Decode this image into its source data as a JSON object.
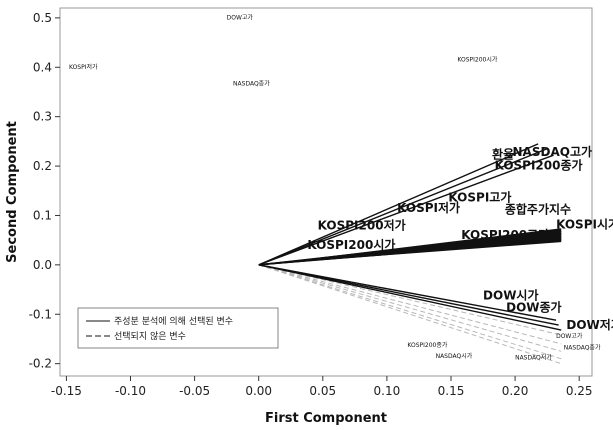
{
  "chart_data": {
    "type": "biplot-loading",
    "xlabel": "First Component",
    "ylabel": "Second Component",
    "xlim": [
      -0.155,
      0.26
    ],
    "ylim": [
      -0.225,
      0.52
    ],
    "x_ticks": [
      -0.15,
      -0.1,
      -0.05,
      0.0,
      0.05,
      0.1,
      0.15,
      0.2,
      0.25
    ],
    "x_tick_labels": [
      "-0.15",
      "-0.10",
      "-0.05",
      "0.00",
      "0.05",
      "0.10",
      "0.15",
      "0.20",
      "0.25"
    ],
    "y_ticks": [
      -0.2,
      -0.1,
      0.0,
      0.1,
      0.2,
      0.3,
      0.4,
      0.5
    ],
    "y_tick_labels": [
      "-0.2",
      "-0.1",
      "0.0",
      "0.1",
      "0.2",
      "0.3",
      "0.4",
      "0.5"
    ],
    "origin": [
      0.0,
      0.0
    ],
    "selected_vectors": [
      {
        "label": "환율",
        "x": 0.218,
        "y": 0.245
      },
      {
        "label": "NASDAQ고가",
        "x": 0.225,
        "y": 0.235
      },
      {
        "label": "KOSPI200종가",
        "x": 0.23,
        "y": 0.222
      },
      {
        "label": "KOSPI고가",
        "x": 0.236,
        "y": 0.068
      },
      {
        "label": "KOSPI저가",
        "x": 0.236,
        "y": 0.064
      },
      {
        "label": "종합주가지수",
        "x": 0.236,
        "y": 0.062
      },
      {
        "label": "KOSPI시가",
        "x": 0.236,
        "y": 0.058
      },
      {
        "label": "KOSPI200저가",
        "x": 0.236,
        "y": 0.055
      },
      {
        "label": "KOSPI200시가",
        "x": 0.236,
        "y": 0.052
      },
      {
        "label": "KOSPI200고가",
        "x": 0.236,
        "y": 0.05
      },
      {
        "label": "DOW시가",
        "x": 0.232,
        "y": -0.112
      },
      {
        "label": "DOW종가",
        "x": 0.234,
        "y": -0.122
      },
      {
        "label": "DOW저가",
        "x": 0.236,
        "y": -0.132
      }
    ],
    "unselected_vectors": [
      {
        "label": "DOW고가",
        "x": 0.236,
        "y": -0.142
      },
      {
        "label": "KOSPI200종가",
        "x": 0.236,
        "y": -0.16
      },
      {
        "label": "NASDAQ종가",
        "x": 0.236,
        "y": -0.175
      },
      {
        "label": "NASDAQ저가",
        "x": 0.236,
        "y": -0.19
      },
      {
        "label": "NASDAQ시가",
        "x": 0.236,
        "y": -0.2
      }
    ],
    "text_labels": [
      {
        "text": "환율",
        "x": 0.182,
        "y": 0.215,
        "size": 12
      },
      {
        "text": "NASDAQ고가",
        "x": 0.198,
        "y": 0.22,
        "size": 12
      },
      {
        "text": "KOSPI200종가",
        "x": 0.184,
        "y": 0.193,
        "size": 12
      },
      {
        "text": "KOSPI고가",
        "x": 0.148,
        "y": 0.128,
        "size": 12
      },
      {
        "text": "KOSPI저가",
        "x": 0.108,
        "y": 0.107,
        "size": 12
      },
      {
        "text": "종합주가지수",
        "x": 0.192,
        "y": 0.104,
        "size": 12
      },
      {
        "text": "KOSPI200저가",
        "x": 0.046,
        "y": 0.072,
        "size": 12
      },
      {
        "text": "KOSPI시가",
        "x": 0.232,
        "y": 0.074,
        "size": 12
      },
      {
        "text": "KOSPI200고가",
        "x": 0.158,
        "y": 0.052,
        "size": 12
      },
      {
        "text": "KOSPI200시가",
        "x": 0.038,
        "y": 0.032,
        "size": 12
      },
      {
        "text": "DOW시가",
        "x": 0.175,
        "y": -0.07,
        "size": 12
      },
      {
        "text": "DOW종가",
        "x": 0.193,
        "y": -0.094,
        "size": 12
      },
      {
        "text": "DOW저가",
        "x": 0.24,
        "y": -0.13,
        "size": 12
      },
      {
        "text": "DOW고가",
        "x": 0.232,
        "y": -0.148,
        "size": 6
      },
      {
        "text": "KOSPI200종가",
        "x": 0.116,
        "y": -0.166,
        "size": 6
      },
      {
        "text": "NASDAQ종가",
        "x": 0.238,
        "y": -0.171,
        "size": 6
      },
      {
        "text": "NASDAQ시가",
        "x": 0.138,
        "y": -0.189,
        "size": 6
      },
      {
        "text": "NASDAQ저가",
        "x": 0.2,
        "y": -0.192,
        "size": 6
      },
      {
        "text": "DOW고가",
        "x": -0.025,
        "y": 0.497,
        "size": 6
      },
      {
        "text": "KOSPI200시가",
        "x": 0.155,
        "y": 0.412,
        "size": 6
      },
      {
        "text": "KOSPI저가",
        "x": -0.148,
        "y": 0.397,
        "size": 6
      },
      {
        "text": "NASDAQ종가",
        "x": -0.02,
        "y": 0.363,
        "size": 6
      }
    ],
    "legend": {
      "placement": "bottom-left",
      "entries": [
        {
          "label": "주성분 분석에 의해 선택된 변수",
          "style": "solid"
        },
        {
          "label": "선택되지 않은 변수",
          "style": "dashed"
        }
      ]
    },
    "grid": false
  }
}
